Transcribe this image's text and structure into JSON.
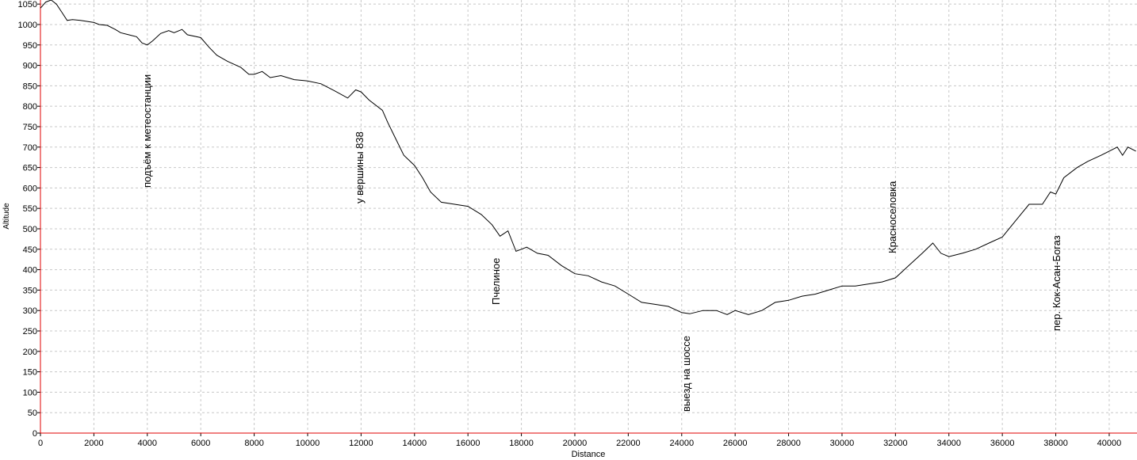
{
  "chart_data": {
    "type": "line",
    "x_label": "Distance",
    "y_label": "Altitude",
    "xlim": [
      0,
      41040
    ],
    "ylim": [
      0,
      1060
    ],
    "xticks": [
      0,
      2000,
      4000,
      6000,
      8000,
      10000,
      12000,
      14000,
      16000,
      18000,
      20000,
      22000,
      24000,
      26000,
      28000,
      30000,
      32000,
      34000,
      36000,
      38000,
      40000
    ],
    "yticks": [
      0,
      50,
      100,
      150,
      200,
      250,
      300,
      350,
      400,
      450,
      500,
      550,
      600,
      650,
      700,
      750,
      800,
      850,
      900,
      950,
      1000,
      1050
    ],
    "grid": true,
    "color": "#000000",
    "x": [
      0,
      200,
      400,
      600,
      800,
      1000,
      1200,
      1500,
      2000,
      2200,
      2500,
      2800,
      3000,
      3300,
      3600,
      3800,
      4000,
      4200,
      4500,
      4800,
      5000,
      5300,
      5500,
      6000,
      6300,
      6600,
      7000,
      7500,
      7800,
      8000,
      8300,
      8600,
      9000,
      9500,
      10000,
      10500,
      11000,
      11500,
      11800,
      12000,
      12300,
      12800,
      13000,
      13300,
      13600,
      14000,
      14300,
      14600,
      15000,
      15500,
      16000,
      16500,
      16900,
      17200,
      17500,
      17800,
      18000,
      18200,
      18600,
      19000,
      19500,
      20000,
      20500,
      21000,
      21500,
      22000,
      22500,
      23000,
      23500,
      24000,
      24300,
      24800,
      25300,
      25700,
      26000,
      26500,
      27000,
      27500,
      28000,
      28500,
      29000,
      29500,
      30000,
      30500,
      31000,
      31500,
      32000,
      32500,
      33000,
      33400,
      33700,
      34000,
      34500,
      35000,
      35500,
      36000,
      36500,
      37000,
      37500,
      37800,
      38000,
      38300,
      38800,
      39200,
      39700,
      40000,
      40300,
      40500,
      40700,
      41000
    ],
    "values": [
      1040,
      1055,
      1060,
      1050,
      1030,
      1010,
      1012,
      1010,
      1005,
      1000,
      998,
      988,
      980,
      975,
      970,
      955,
      950,
      960,
      978,
      985,
      980,
      988,
      975,
      968,
      945,
      925,
      910,
      895,
      878,
      878,
      885,
      870,
      875,
      865,
      862,
      855,
      838,
      820,
      840,
      835,
      815,
      790,
      760,
      720,
      680,
      655,
      625,
      590,
      565,
      560,
      555,
      535,
      510,
      482,
      495,
      445,
      450,
      455,
      440,
      435,
      410,
      390,
      385,
      370,
      360,
      340,
      320,
      315,
      310,
      295,
      292,
      300,
      300,
      290,
      300,
      290,
      300,
      320,
      325,
      335,
      340,
      350,
      360,
      360,
      365,
      370,
      380,
      410,
      440,
      465,
      440,
      432,
      440,
      450,
      465,
      480,
      520,
      560,
      560,
      590,
      585,
      625,
      650,
      665,
      680,
      690,
      700,
      680,
      700,
      690
    ],
    "annotations": [
      "подъём к метеостанции",
      "у вершины 838",
      "Пчелиное",
      "выезд на шоссе",
      "Красноселовка",
      "пер. Кок-Асан-Богаз"
    ]
  }
}
